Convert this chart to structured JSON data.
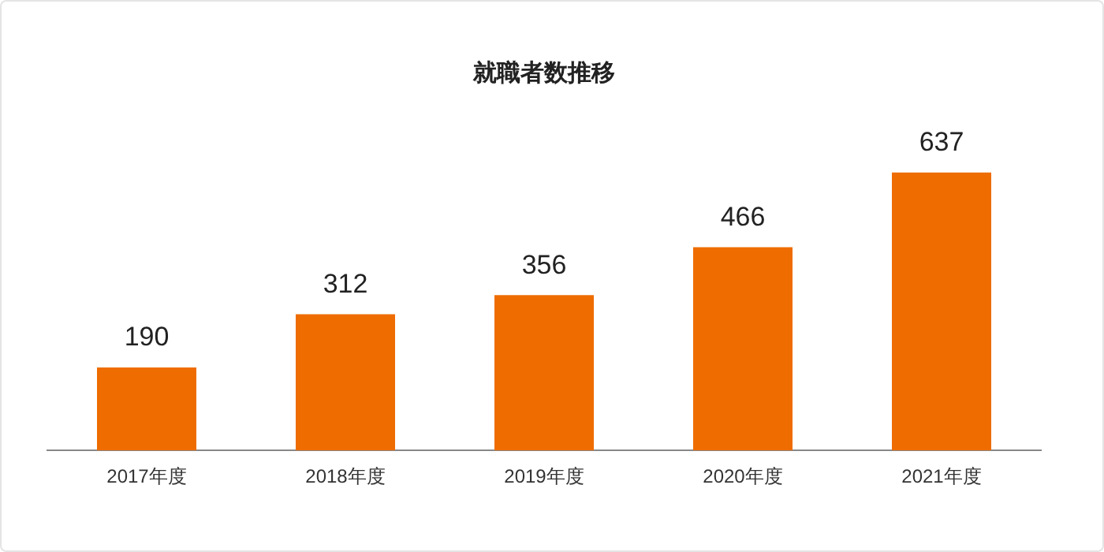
{
  "chart_data": {
    "type": "bar",
    "title": "就職者数推移",
    "categories": [
      "2017年度",
      "2018年度",
      "2019年度",
      "2020年度",
      "2021年度"
    ],
    "values": [
      190,
      312,
      356,
      466,
      637
    ],
    "color": "#ee6c00",
    "data_labels": true,
    "grid": false,
    "legend": false
  }
}
